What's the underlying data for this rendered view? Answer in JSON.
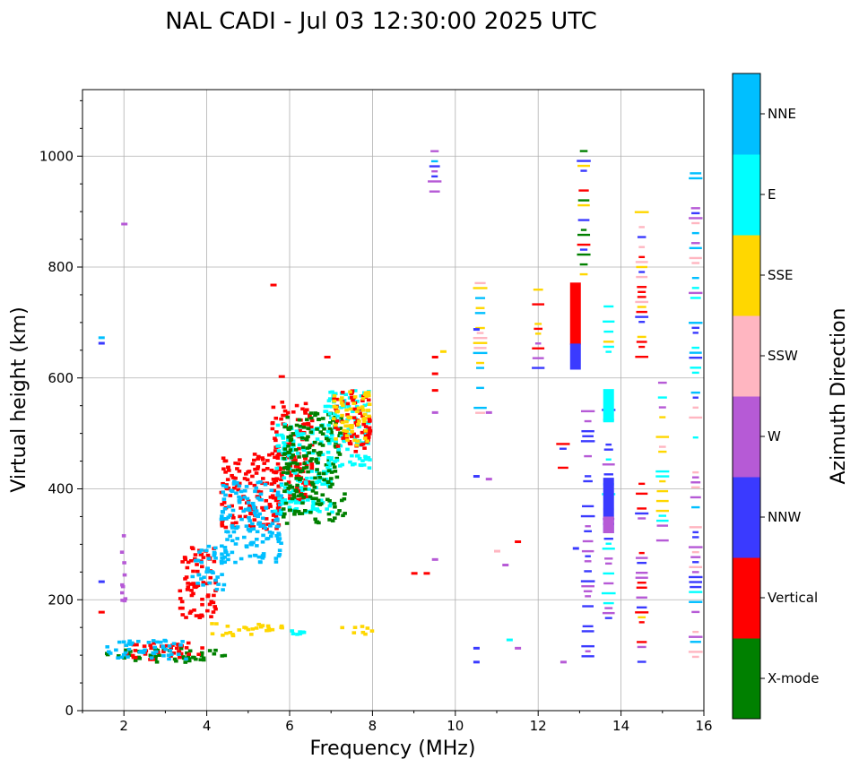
{
  "chart_data": {
    "type": "scatter",
    "title": "NAL CADI - Jul 03 12:30:00 2025 UTC",
    "xlabel": "Frequency (MHz)",
    "ylabel": "Virtual height (km)",
    "xlim": [
      1,
      16
    ],
    "ylim": [
      0,
      1120
    ],
    "xticks": [
      2,
      4,
      6,
      8,
      10,
      12,
      14,
      16
    ],
    "yticks": [
      0,
      200,
      400,
      600,
      800,
      1000
    ],
    "grid": true,
    "colorbar": {
      "label": "Azimuth Direction",
      "categories": [
        {
          "name": "X-mode",
          "color": "#008000"
        },
        {
          "name": "Vertical",
          "color": "#ff0000"
        },
        {
          "name": "NNW",
          "color": "#3a3aff"
        },
        {
          "name": "W",
          "color": "#b65ad6"
        },
        {
          "name": "SSW",
          "color": "#ffb6c1"
        },
        {
          "name": "SSE",
          "color": "#ffd700"
        },
        {
          "name": "E",
          "color": "#00ffff"
        },
        {
          "name": "NNE",
          "color": "#00bfff"
        }
      ]
    },
    "bands": [
      {
        "cat": "X-mode",
        "x1": 1.5,
        "x2": 4.4,
        "y1": 90,
        "y2": 115
      },
      {
        "cat": "Vertical",
        "x1": 2.0,
        "x2": 3.9,
        "y1": 95,
        "y2": 125
      },
      {
        "cat": "NNE",
        "x1": 1.5,
        "x2": 3.5,
        "y1": 95,
        "y2": 130
      },
      {
        "cat": "SSE",
        "x1": 4.0,
        "x2": 5.8,
        "y1": 138,
        "y2": 160
      },
      {
        "cat": "E",
        "x1": 6.0,
        "x2": 6.3,
        "y1": 140,
        "y2": 150
      },
      {
        "cat": "SSE",
        "x1": 7.2,
        "x2": 8.0,
        "y1": 140,
        "y2": 155
      },
      {
        "cat": "W",
        "x1": 1.9,
        "x2": 2.0,
        "y1": 190,
        "y2": 330
      },
      {
        "cat": "Vertical",
        "x1": 3.3,
        "x2": 4.2,
        "y1": 170,
        "y2": 300
      },
      {
        "cat": "NNE",
        "x1": 3.6,
        "x2": 4.4,
        "y1": 220,
        "y2": 300
      },
      {
        "cat": "Vertical",
        "x1": 4.3,
        "x2": 5.8,
        "y1": 330,
        "y2": 470
      },
      {
        "cat": "NNE",
        "x1": 4.3,
        "x2": 5.8,
        "y1": 270,
        "y2": 420
      },
      {
        "cat": "Vertical",
        "x1": 5.5,
        "x2": 6.5,
        "y1": 380,
        "y2": 560
      },
      {
        "cat": "E",
        "x1": 5.6,
        "x2": 7.0,
        "y1": 360,
        "y2": 520
      },
      {
        "cat": "X-mode",
        "x1": 5.8,
        "x2": 7.3,
        "y1": 340,
        "y2": 540
      },
      {
        "cat": "E",
        "x1": 6.8,
        "x2": 7.9,
        "y1": 440,
        "y2": 580
      },
      {
        "cat": "Vertical",
        "x1": 7.0,
        "x2": 7.9,
        "y1": 470,
        "y2": 580
      },
      {
        "cat": "SSE",
        "x1": 7.0,
        "x2": 7.9,
        "y1": 480,
        "y2": 580
      }
    ],
    "columns": [
      {
        "x": 12.0,
        "y1": 620,
        "y2": 770,
        "cats": [
          "Vertical",
          "NNW",
          "SSE",
          "W"
        ]
      },
      {
        "x": 12.6,
        "y1": 440,
        "y2": 500,
        "cats": [
          "Vertical",
          "W",
          "NNW",
          "SSW"
        ]
      },
      {
        "x": 13.1,
        "y1": 780,
        "y2": 1020,
        "cats": [
          "NNW",
          "W",
          "Vertical",
          "SSE",
          "X-mode"
        ]
      },
      {
        "x": 13.7,
        "y1": 160,
        "y2": 580,
        "cats": [
          "NNW",
          "E",
          "W"
        ]
      },
      {
        "x": 13.7,
        "y1": 640,
        "y2": 740,
        "cats": [
          "E",
          "SSE",
          "W"
        ]
      },
      {
        "x": 14.5,
        "y1": 640,
        "y2": 910,
        "cats": [
          "SSE",
          "Vertical",
          "SSW",
          "NNW"
        ]
      },
      {
        "x": 14.5,
        "y1": 90,
        "y2": 420,
        "cats": [
          "SSE",
          "W",
          "Vertical",
          "NNW"
        ]
      },
      {
        "x": 15.0,
        "y1": 300,
        "y2": 620,
        "cats": [
          "SSE",
          "E",
          "Vertical",
          "SSW",
          "W"
        ]
      },
      {
        "x": 15.8,
        "y1": 90,
        "y2": 980,
        "cats": [
          "W",
          "NNW",
          "SSW",
          "E",
          "NNE"
        ]
      },
      {
        "x": 13.2,
        "y1": 100,
        "y2": 560,
        "cats": [
          "W",
          "NNW"
        ]
      },
      {
        "x": 9.5,
        "y1": 920,
        "y2": 1020,
        "cats": [
          "NNE",
          "NNW",
          "W"
        ]
      },
      {
        "x": 10.6,
        "y1": 530,
        "y2": 800,
        "cats": [
          "NNE",
          "SSE",
          "SSW"
        ]
      }
    ],
    "big_bars": [
      {
        "cat": "Vertical",
        "x": 12.9,
        "y1": 660,
        "y2": 772
      },
      {
        "cat": "NNW",
        "x": 12.9,
        "y1": 615,
        "y2": 662
      },
      {
        "cat": "NNW",
        "x": 13.7,
        "y1": 320,
        "y2": 420
      },
      {
        "cat": "E",
        "x": 13.7,
        "y1": 520,
        "y2": 580
      },
      {
        "cat": "W",
        "x": 13.7,
        "y1": 320,
        "y2": 350
      }
    ],
    "points": [
      {
        "cat": "NNE",
        "x": 1.45,
        "y": 675
      },
      {
        "cat": "NNW",
        "x": 1.45,
        "y": 665
      },
      {
        "cat": "Vertical",
        "x": 1.45,
        "y": 180
      },
      {
        "cat": "NNW",
        "x": 1.45,
        "y": 235
      },
      {
        "cat": "W",
        "x": 2.0,
        "y": 880
      },
      {
        "cat": "Vertical",
        "x": 5.6,
        "y": 770
      },
      {
        "cat": "Vertical",
        "x": 6.9,
        "y": 640
      },
      {
        "cat": "Vertical",
        "x": 5.8,
        "y": 605
      },
      {
        "cat": "Vertical",
        "x": 9.0,
        "y": 250
      },
      {
        "cat": "Vertical",
        "x": 9.3,
        "y": 250
      },
      {
        "cat": "SSW",
        "x": 11.0,
        "y": 290
      },
      {
        "cat": "Vertical",
        "x": 11.5,
        "y": 307
      },
      {
        "cat": "W",
        "x": 11.2,
        "y": 265
      },
      {
        "cat": "E",
        "x": 11.3,
        "y": 130
      },
      {
        "cat": "W",
        "x": 11.5,
        "y": 115
      },
      {
        "cat": "NNW",
        "x": 10.5,
        "y": 115
      },
      {
        "cat": "NNW",
        "x": 10.5,
        "y": 90
      },
      {
        "cat": "W",
        "x": 12.6,
        "y": 90
      },
      {
        "cat": "Vertical",
        "x": 9.5,
        "y": 640
      },
      {
        "cat": "Vertical",
        "x": 9.5,
        "y": 610
      },
      {
        "cat": "Vertical",
        "x": 9.5,
        "y": 580
      },
      {
        "cat": "SSE",
        "x": 9.7,
        "y": 650
      },
      {
        "cat": "W",
        "x": 9.5,
        "y": 540
      },
      {
        "cat": "W",
        "x": 9.5,
        "y": 275
      },
      {
        "cat": "W",
        "x": 10.8,
        "y": 420
      },
      {
        "cat": "NNW",
        "x": 10.5,
        "y": 425
      },
      {
        "cat": "W",
        "x": 10.8,
        "y": 540
      },
      {
        "cat": "NNW",
        "x": 10.5,
        "y": 690
      },
      {
        "cat": "NNW",
        "x": 12.9,
        "y": 295
      }
    ]
  }
}
